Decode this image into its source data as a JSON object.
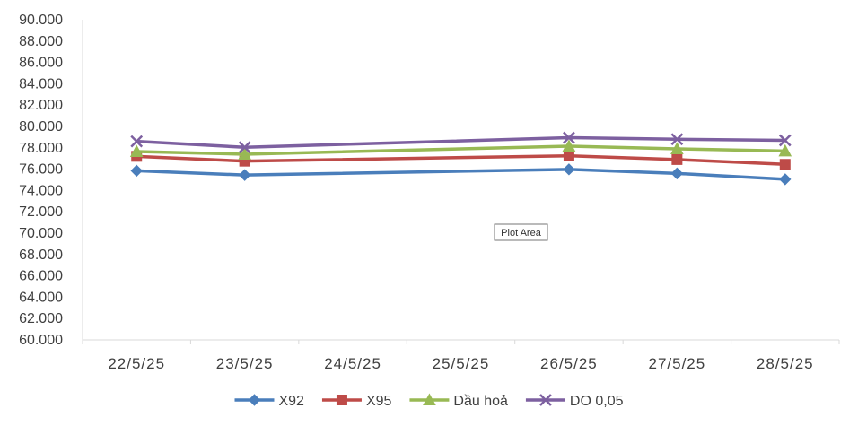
{
  "chart_data": {
    "type": "line",
    "title": "",
    "xlabel": "",
    "ylabel": "",
    "categories": [
      "22/5/25",
      "23/5/25",
      "24/5/25",
      "25/5/25",
      "26/5/25",
      "27/5/25",
      "28/5/25"
    ],
    "ylim": [
      60000,
      90000
    ],
    "ytick_labels": [
      "90.000",
      "88.000",
      "86.000",
      "84.000",
      "82.000",
      "80.000",
      "78.000",
      "76.000",
      "74.000",
      "72.000",
      "70.000",
      "68.000",
      "66.000",
      "64.000",
      "62.000",
      "60.000"
    ],
    "grid": false,
    "legend_position": "bottom",
    "series": [
      {
        "name": "X92",
        "color": "#4a7ebb",
        "marker": "diamond",
        "values": [
          75850,
          75450,
          null,
          null,
          75980,
          75600,
          75050
        ]
      },
      {
        "name": "X95",
        "color": "#be4b48",
        "marker": "square",
        "values": [
          77200,
          76750,
          null,
          null,
          77250,
          76900,
          76450
        ]
      },
      {
        "name": "Dầu hoả",
        "color": "#98b954",
        "marker": "triangle",
        "values": [
          77650,
          77400,
          null,
          null,
          78150,
          77900,
          77700
        ]
      },
      {
        "name": "DO 0,05",
        "color": "#7d60a0",
        "marker": "x",
        "values": [
          78600,
          78050,
          null,
          null,
          78950,
          78800,
          78700
        ]
      }
    ],
    "annotation": "Plot Area"
  }
}
